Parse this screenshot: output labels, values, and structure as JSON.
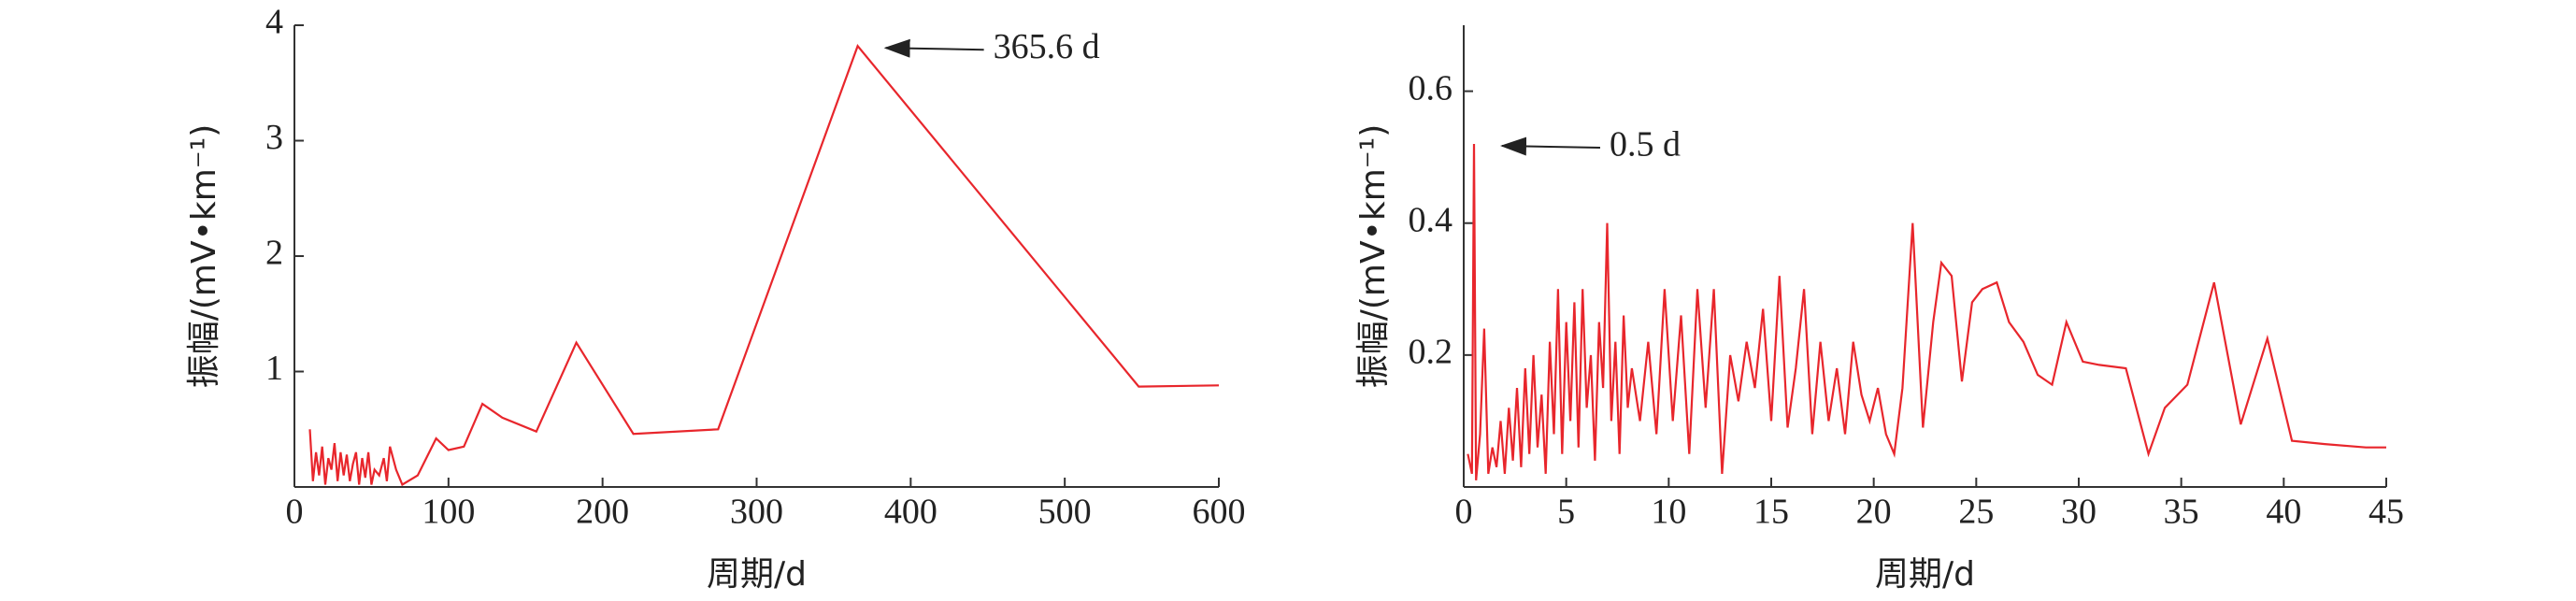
{
  "chart_data": [
    {
      "type": "line",
      "xlabel": "周期/d",
      "ylabel": "振幅/(mV•km⁻¹)",
      "xlim": [
        0,
        600
      ],
      "ylim": [
        0,
        4
      ],
      "xticks": [
        0,
        100,
        200,
        300,
        400,
        500,
        600
      ],
      "yticks": [
        1,
        2,
        3,
        4
      ],
      "annotation": {
        "text": "365.6 d",
        "x": 365.6,
        "y": 3.82
      },
      "series": [
        {
          "name": "振幅",
          "color": "#e8262c",
          "x": [
            10,
            12,
            14,
            16,
            18,
            20,
            22,
            24,
            26,
            28,
            30,
            32,
            34,
            36,
            38,
            40,
            42,
            44,
            46,
            48,
            50,
            52,
            55,
            58,
            60,
            62,
            66,
            70,
            80,
            92,
            100,
            110,
            122,
            135,
            157,
            183,
            220,
            275,
            365.6,
            548,
            600
          ],
          "values": [
            0.5,
            0.05,
            0.3,
            0.1,
            0.35,
            0.02,
            0.25,
            0.15,
            0.38,
            0.05,
            0.3,
            0.1,
            0.28,
            0.05,
            0.2,
            0.3,
            0.02,
            0.25,
            0.08,
            0.3,
            0.02,
            0.15,
            0.1,
            0.25,
            0.05,
            0.35,
            0.15,
            0.02,
            0.1,
            0.42,
            0.32,
            0.35,
            0.72,
            0.6,
            0.48,
            1.25,
            0.46,
            0.5,
            3.82,
            0.87,
            0.88
          ]
        }
      ]
    },
    {
      "type": "line",
      "xlabel": "周期/d",
      "ylabel": "振幅/(mV•km⁻¹)",
      "xlim": [
        0,
        45
      ],
      "ylim": [
        0,
        0.7
      ],
      "xticks": [
        0,
        5,
        10,
        15,
        20,
        25,
        30,
        35,
        40,
        45
      ],
      "yticks": [
        0.2,
        0.4,
        0.6
      ],
      "annotation": {
        "text": "0.5 d",
        "x": 0.5,
        "y": 0.52
      },
      "series": [
        {
          "name": "振幅",
          "color": "#e8262c",
          "x": [
            0.2,
            0.4,
            0.5,
            0.6,
            0.8,
            1.0,
            1.2,
            1.4,
            1.6,
            1.8,
            2.0,
            2.2,
            2.4,
            2.6,
            2.8,
            3.0,
            3.2,
            3.4,
            3.6,
            3.8,
            4.0,
            4.2,
            4.4,
            4.6,
            4.8,
            5.0,
            5.2,
            5.4,
            5.6,
            5.8,
            6.0,
            6.2,
            6.4,
            6.6,
            6.8,
            7.0,
            7.2,
            7.4,
            7.6,
            7.8,
            8.0,
            8.2,
            8.6,
            9,
            9.4,
            9.8,
            10.2,
            10.6,
            11,
            11.4,
            11.8,
            12.2,
            12.6,
            13,
            13.4,
            13.8,
            14.2,
            14.6,
            15,
            15.4,
            15.8,
            16.2,
            16.6,
            17,
            17.4,
            17.8,
            18.2,
            18.6,
            19,
            19.4,
            19.8,
            20.2,
            20.6,
            21,
            21.4,
            21.9,
            22.4,
            22.9,
            23.3,
            23.8,
            24.3,
            24.8,
            25.3,
            26,
            26.6,
            27.3,
            28,
            28.7,
            29.4,
            30.2,
            31,
            32.3,
            33.4,
            34.2,
            35.3,
            36.6,
            37.9,
            39.2,
            40.4,
            42,
            44,
            45
          ],
          "values": [
            0.05,
            0.02,
            0.52,
            0.01,
            0.08,
            0.24,
            0.02,
            0.06,
            0.03,
            0.1,
            0.02,
            0.12,
            0.04,
            0.15,
            0.03,
            0.18,
            0.05,
            0.2,
            0.06,
            0.14,
            0.02,
            0.22,
            0.08,
            0.3,
            0.05,
            0.25,
            0.1,
            0.28,
            0.06,
            0.3,
            0.12,
            0.2,
            0.04,
            0.25,
            0.15,
            0.4,
            0.1,
            0.22,
            0.05,
            0.26,
            0.12,
            0.18,
            0.1,
            0.22,
            0.08,
            0.3,
            0.1,
            0.26,
            0.05,
            0.3,
            0.12,
            0.3,
            0.02,
            0.2,
            0.13,
            0.22,
            0.15,
            0.27,
            0.1,
            0.32,
            0.09,
            0.18,
            0.3,
            0.08,
            0.22,
            0.1,
            0.18,
            0.08,
            0.22,
            0.14,
            0.1,
            0.15,
            0.08,
            0.05,
            0.15,
            0.4,
            0.09,
            0.25,
            0.34,
            0.32,
            0.16,
            0.28,
            0.3,
            0.31,
            0.25,
            0.22,
            0.17,
            0.155,
            0.25,
            0.19,
            0.185,
            0.18,
            0.05,
            0.12,
            0.155,
            0.31,
            0.095,
            0.225,
            0.07,
            0.065,
            0.06,
            0.06
          ]
        }
      ]
    }
  ]
}
